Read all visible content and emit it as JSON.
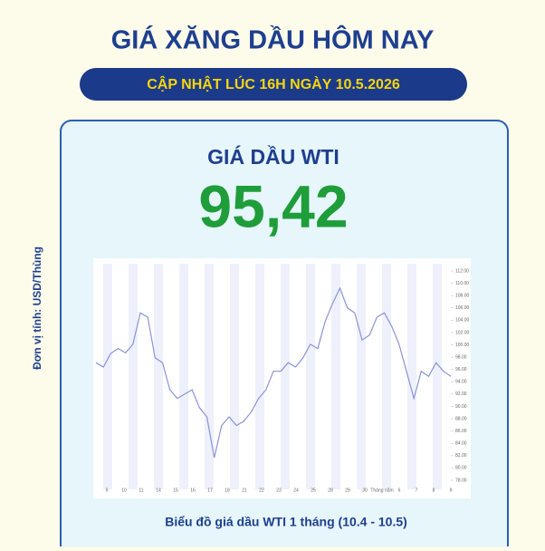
{
  "header": {
    "title": "GIÁ XĂNG DẦU HÔM NAY",
    "subtitle": "CẬP NHẬT LÚC 16H NGÀY 10.5.2026"
  },
  "card": {
    "title": "GIÁ DẦU WTI",
    "price": "95,42",
    "unit_label": "Đơn vị tính: USD/Thùng",
    "caption": "Biểu đồ giá dầu WTI 1 tháng (10.4 - 10.5)"
  },
  "chart_data": {
    "type": "line",
    "color": "#8a93d6",
    "values": [
      97.1,
      96.4,
      98.6,
      99.4,
      98.7,
      100.1,
      105.2,
      104.5,
      97.9,
      97.1,
      92.7,
      91.3,
      92,
      92.7,
      89.8,
      88.3,
      81.7,
      86.9,
      88.3,
      86.9,
      87.6,
      89.1,
      91.3,
      92.7,
      95.7,
      95.7,
      97.1,
      96.4,
      97.9,
      100.1,
      99.4,
      103.8,
      106.7,
      109.2,
      106,
      105.2,
      100.8,
      101.6,
      104.5,
      105.2,
      103,
      100.1,
      95.7,
      91.3,
      95.7,
      94.9,
      97.1,
      95.7,
      94.9
    ],
    "ylim": [
      78,
      112
    ],
    "yticks": [
      {
        "value": 78,
        "label": "78.00"
      },
      {
        "value": 80,
        "label": "80.00"
      },
      {
        "value": 82,
        "label": "82.00"
      },
      {
        "value": 84,
        "label": "84.00"
      },
      {
        "value": 86,
        "label": "86.00"
      },
      {
        "value": 88,
        "label": "88.00"
      },
      {
        "value": 90,
        "label": "90.00"
      },
      {
        "value": 92,
        "label": "92.00"
      },
      {
        "value": 94,
        "label": "94.00"
      },
      {
        "value": 96,
        "label": "96.00"
      },
      {
        "value": 98,
        "label": "98.00"
      },
      {
        "value": 100,
        "label": "100.00"
      },
      {
        "value": 102,
        "label": "102.00"
      },
      {
        "value": 104,
        "label": "104.00"
      },
      {
        "value": 106,
        "label": "106.00"
      },
      {
        "value": 108,
        "label": "108.00"
      },
      {
        "value": 110,
        "label": "110.00"
      },
      {
        "value": 112,
        "label": "112.00"
      }
    ],
    "x_labels": [
      "9",
      "10",
      "11",
      "14",
      "15",
      "16",
      "17",
      "18",
      "21",
      "22",
      "23",
      "24",
      "25",
      "28",
      "29",
      "30",
      "Tháng năm",
      "6",
      "7",
      "8",
      "9"
    ]
  }
}
